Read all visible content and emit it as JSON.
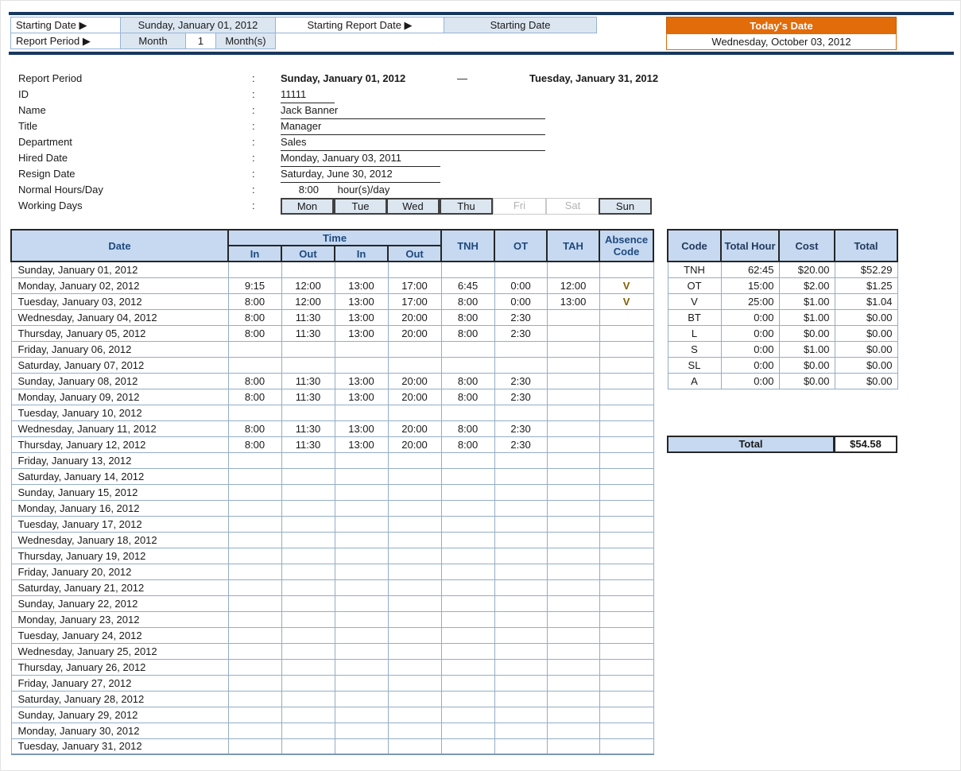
{
  "header": {
    "starting_date_label": "Starting Date ▶",
    "starting_date_value": "Sunday, January 01, 2012",
    "starting_report_date_label": "Starting Report Date ▶",
    "starting_report_date_value": "Starting Date",
    "report_period_label": "Report Period ▶",
    "month_label": "Month",
    "month_count": "1",
    "months_label": "Month(s)",
    "todays_date_label": "Today's Date",
    "todays_date_value": "Wednesday, October 03, 2012"
  },
  "info": {
    "colon": ":",
    "report_period": {
      "label": "Report Period",
      "from": "Sunday, January 01, 2012",
      "dash": "—",
      "to": "Tuesday, January 31, 2012"
    },
    "id": {
      "label": "ID",
      "value": "11111"
    },
    "name": {
      "label": "Name",
      "value": "Jack Banner"
    },
    "title": {
      "label": "Title",
      "value": "Manager"
    },
    "department": {
      "label": "Department",
      "value": "Sales"
    },
    "hired_date": {
      "label": "Hired Date",
      "value": "Monday, January 03, 2011"
    },
    "resign_date": {
      "label": "Resign Date",
      "value": "Saturday, June 30, 2012"
    },
    "normal_hours": {
      "label": "Normal Hours/Day",
      "value": "8:00",
      "suffix": "hour(s)/day"
    },
    "working_days": {
      "label": "Working Days",
      "days": [
        {
          "label": "Mon",
          "active": true
        },
        {
          "label": "Tue",
          "active": true
        },
        {
          "label": "Wed",
          "active": true
        },
        {
          "label": "Thu",
          "active": true
        },
        {
          "label": "Fri",
          "active": false
        },
        {
          "label": "Sat",
          "active": false
        },
        {
          "label": "Sun",
          "active": true
        }
      ]
    }
  },
  "timesheet": {
    "headers": {
      "date": "Date",
      "time": "Time",
      "in1": "In",
      "out1": "Out",
      "in2": "In",
      "out2": "Out",
      "tnh": "TNH",
      "ot": "OT",
      "tah": "TAH",
      "absence": "Absence Code"
    },
    "rows": [
      {
        "date": "Sunday, January 01, 2012",
        "type": "holiday",
        "cells": [
          "",
          "",
          "",
          "",
          "",
          "",
          "",
          ""
        ]
      },
      {
        "date": "Monday, January 02, 2012",
        "type": "normal",
        "cells": [
          "9:15",
          "12:00",
          "13:00",
          "17:00",
          "6:45",
          "0:00",
          "12:00",
          "V"
        ]
      },
      {
        "date": "Tuesday, January 03, 2012",
        "type": "normal",
        "cells": [
          "8:00",
          "12:00",
          "13:00",
          "17:00",
          "8:00",
          "0:00",
          "13:00",
          "V"
        ]
      },
      {
        "date": "Wednesday, January 04, 2012",
        "type": "normal",
        "cells": [
          "8:00",
          "11:30",
          "13:00",
          "20:00",
          "8:00",
          "2:30",
          "",
          ""
        ]
      },
      {
        "date": "Thursday, January 05, 2012",
        "type": "normal",
        "cells": [
          "8:00",
          "11:30",
          "13:00",
          "20:00",
          "8:00",
          "2:30",
          "",
          ""
        ]
      },
      {
        "date": "Friday, January 06, 2012",
        "type": "weekend",
        "cells": [
          "",
          "",
          "",
          "",
          "",
          "",
          "",
          ""
        ]
      },
      {
        "date": "Saturday, January 07, 2012",
        "type": "weekend",
        "cells": [
          "",
          "",
          "",
          "",
          "",
          "",
          "",
          ""
        ]
      },
      {
        "date": "Sunday, January 08, 2012",
        "type": "normal",
        "cells": [
          "8:00",
          "11:30",
          "13:00",
          "20:00",
          "8:00",
          "2:30",
          "",
          ""
        ]
      },
      {
        "date": "Monday, January 09, 2012",
        "type": "normal",
        "cells": [
          "8:00",
          "11:30",
          "13:00",
          "20:00",
          "8:00",
          "2:30",
          "",
          ""
        ]
      },
      {
        "date": "Tuesday, January 10, 2012",
        "type": "holiday",
        "cells": [
          "",
          "",
          "",
          "",
          "",
          "",
          "",
          ""
        ]
      },
      {
        "date": "Wednesday, January 11, 2012",
        "type": "normal",
        "cells": [
          "8:00",
          "11:30",
          "13:00",
          "20:00",
          "8:00",
          "2:30",
          "",
          ""
        ]
      },
      {
        "date": "Thursday, January 12, 2012",
        "type": "normal",
        "cells": [
          "8:00",
          "11:30",
          "13:00",
          "20:00",
          "8:00",
          "2:30",
          "",
          ""
        ]
      },
      {
        "date": "Friday, January 13, 2012",
        "type": "weekend",
        "cells": [
          "",
          "",
          "",
          "",
          "",
          "",
          "",
          ""
        ]
      },
      {
        "date": "Saturday, January 14, 2012",
        "type": "weekend",
        "cells": [
          "",
          "",
          "",
          "",
          "",
          "",
          "",
          ""
        ]
      },
      {
        "date": "Sunday, January 15, 2012",
        "type": "normal",
        "cells": [
          "",
          "",
          "",
          "",
          "",
          "",
          "",
          ""
        ]
      },
      {
        "date": "Monday, January 16, 2012",
        "type": "normal",
        "cells": [
          "",
          "",
          "",
          "",
          "",
          "",
          "",
          ""
        ]
      },
      {
        "date": "Tuesday, January 17, 2012",
        "type": "normal",
        "cells": [
          "",
          "",
          "",
          "",
          "",
          "",
          "",
          ""
        ]
      },
      {
        "date": "Wednesday, January 18, 2012",
        "type": "normal",
        "cells": [
          "",
          "",
          "",
          "",
          "",
          "",
          "",
          ""
        ]
      },
      {
        "date": "Thursday, January 19, 2012",
        "type": "normal",
        "cells": [
          "",
          "",
          "",
          "",
          "",
          "",
          "",
          ""
        ]
      },
      {
        "date": "Friday, January 20, 2012",
        "type": "weekend",
        "cells": [
          "",
          "",
          "",
          "",
          "",
          "",
          "",
          ""
        ]
      },
      {
        "date": "Saturday, January 21, 2012",
        "type": "weekend",
        "cells": [
          "",
          "",
          "",
          "",
          "",
          "",
          "",
          ""
        ]
      },
      {
        "date": "Sunday, January 22, 2012",
        "type": "normal",
        "cells": [
          "",
          "",
          "",
          "",
          "",
          "",
          "",
          ""
        ]
      },
      {
        "date": "Monday, January 23, 2012",
        "type": "normal",
        "cells": [
          "",
          "",
          "",
          "",
          "",
          "",
          "",
          ""
        ]
      },
      {
        "date": "Tuesday, January 24, 2012",
        "type": "normal",
        "cells": [
          "",
          "",
          "",
          "",
          "",
          "",
          "",
          ""
        ]
      },
      {
        "date": "Wednesday, January 25, 2012",
        "type": "normal",
        "cells": [
          "",
          "",
          "",
          "",
          "",
          "",
          "",
          ""
        ]
      },
      {
        "date": "Thursday, January 26, 2012",
        "type": "normal",
        "cells": [
          "",
          "",
          "",
          "",
          "",
          "",
          "",
          ""
        ]
      },
      {
        "date": "Friday, January 27, 2012",
        "type": "weekend",
        "cells": [
          "",
          "",
          "",
          "",
          "",
          "",
          "",
          ""
        ]
      },
      {
        "date": "Saturday, January 28, 2012",
        "type": "weekend",
        "cells": [
          "",
          "",
          "",
          "",
          "",
          "",
          "",
          ""
        ]
      },
      {
        "date": "Sunday, January 29, 2012",
        "type": "normal",
        "cells": [
          "",
          "",
          "",
          "",
          "",
          "",
          "",
          ""
        ]
      },
      {
        "date": "Monday, January 30, 2012",
        "type": "normal",
        "cells": [
          "",
          "",
          "",
          "",
          "",
          "",
          "",
          ""
        ]
      },
      {
        "date": "Tuesday, January 31, 2012",
        "type": "normal",
        "cells": [
          "",
          "",
          "",
          "",
          "",
          "",
          "",
          ""
        ]
      }
    ]
  },
  "summary": {
    "headers": [
      "Code",
      "Total Hour",
      "Cost",
      "Total"
    ],
    "rows": [
      [
        "TNH",
        "62:45",
        "$20.00",
        "$52.29"
      ],
      [
        "OT",
        "15:00",
        "$2.00",
        "$1.25"
      ],
      [
        "V",
        "25:00",
        "$1.00",
        "$1.04"
      ],
      [
        "BT",
        "0:00",
        "$1.00",
        "$0.00"
      ],
      [
        "L",
        "0:00",
        "$0.00",
        "$0.00"
      ],
      [
        "S",
        "0:00",
        "$1.00",
        "$0.00"
      ],
      [
        "SL",
        "0:00",
        "$0.00",
        "$0.00"
      ],
      [
        "A",
        "0:00",
        "$0.00",
        "$0.00"
      ]
    ],
    "total_label": "Total",
    "total_value": "$54.58"
  },
  "colors": {
    "accent_orange": "#e26b0a",
    "header_blue": "#c6d9f1",
    "weekend_blue": "#b8cce4",
    "holiday_purple": "#cfc4de",
    "value_blue": "#dce6f1",
    "absence_amber": "#fec000",
    "dark_rule_navy": "#17375e"
  }
}
